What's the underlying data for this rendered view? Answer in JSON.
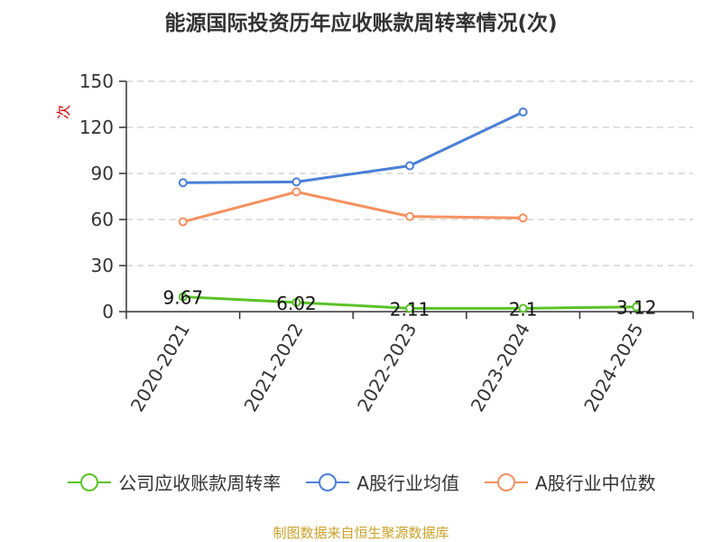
{
  "title": "能源国际投资历年应收账款周转率情况(次)",
  "source": "制图数据来自恒生聚源数据库",
  "colors": {
    "company": "#5bc228",
    "industry_mean": "#4a7fd6",
    "industry_median": "#f59160",
    "grid": "#cccccc",
    "axis": "#333333",
    "watermark": "#cc0000"
  },
  "watermark_text": "次",
  "chart_data": {
    "type": "line",
    "categories": [
      "2020-2021",
      "2021-2022",
      "2022-2023",
      "2023-2024",
      "2024-2025"
    ],
    "ylim": [
      0,
      150
    ],
    "yticks": [
      0,
      30,
      60,
      90,
      120,
      150
    ],
    "grid": true,
    "legend_position": "bottom",
    "series": [
      {
        "name": "公司应收账款周转率",
        "color": "#5bc228",
        "values": [
          9.67,
          6.02,
          2.11,
          2.1,
          3.12
        ],
        "labels": [
          "9.67",
          "6.02",
          "2.11",
          "2.1",
          "3.12"
        ]
      },
      {
        "name": "A股行业均值",
        "color": "#4a7fd6",
        "values": [
          84,
          84.5,
          95,
          130,
          null
        ]
      },
      {
        "name": "A股行业中位数",
        "color": "#f59160",
        "values": [
          58.5,
          78,
          62,
          61,
          null
        ]
      }
    ]
  }
}
